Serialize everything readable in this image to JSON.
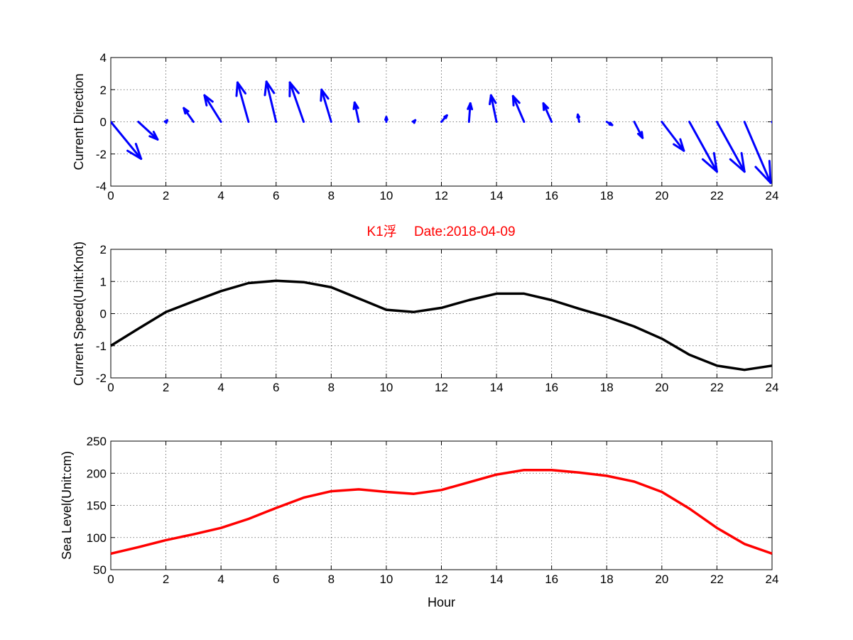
{
  "figure_title": "K1浮　 Date:2018-04-09",
  "chart_data": [
    {
      "type": "quiver",
      "ylabel": "Current Direction",
      "xlabel": "",
      "xlim": [
        0,
        24
      ],
      "ylim": [
        -4,
        4
      ],
      "xticks": [
        0,
        2,
        4,
        6,
        8,
        10,
        12,
        14,
        16,
        18,
        20,
        22,
        24
      ],
      "yticks": [
        4,
        2,
        0,
        -2,
        -4
      ],
      "grid": true,
      "color": "#0000ff",
      "x": [
        0,
        1,
        2,
        3,
        4,
        5,
        6,
        7,
        8,
        9,
        10,
        11,
        12,
        13,
        14,
        15,
        16,
        17,
        18,
        19,
        20,
        21,
        22,
        23,
        24
      ],
      "u": [
        1.1,
        0.7,
        0.05,
        -0.35,
        -0.6,
        -0.4,
        -0.35,
        -0.5,
        -0.35,
        -0.15,
        0.0,
        0.05,
        0.2,
        0.05,
        -0.2,
        -0.4,
        -0.3,
        -0.05,
        0.2,
        0.3,
        0.8,
        1.0,
        1.0,
        0.95,
        0.9
      ],
      "v": [
        -2.3,
        -1.1,
        0.1,
        0.85,
        1.65,
        2.45,
        2.5,
        2.45,
        2.0,
        1.2,
        0.3,
        0.1,
        0.4,
        1.15,
        1.65,
        1.6,
        1.15,
        0.45,
        -0.2,
        -1.0,
        -1.8,
        -3.1,
        -3.1,
        -3.8,
        -3.3
      ]
    },
    {
      "type": "line",
      "ylabel": "Current Speed(Unit:Knot)",
      "xlabel": "",
      "xlim": [
        0,
        24
      ],
      "ylim": [
        -2,
        2
      ],
      "xticks": [
        0,
        2,
        4,
        6,
        8,
        10,
        12,
        14,
        16,
        18,
        20,
        22,
        24
      ],
      "yticks": [
        2,
        1,
        0,
        -1,
        -2
      ],
      "grid": true,
      "color": "#000000",
      "x": [
        0,
        1,
        2,
        3,
        4,
        5,
        6,
        7,
        8,
        9,
        10,
        11,
        12,
        13,
        14,
        15,
        16,
        17,
        18,
        19,
        20,
        21,
        22,
        23,
        24
      ],
      "y": [
        -1.0,
        -0.47,
        0.05,
        0.38,
        0.7,
        0.95,
        1.02,
        0.98,
        0.82,
        0.47,
        0.12,
        0.05,
        0.18,
        0.42,
        0.62,
        0.62,
        0.42,
        0.15,
        -0.1,
        -0.4,
        -0.78,
        -1.28,
        -1.62,
        -1.75,
        -1.62
      ]
    },
    {
      "type": "line",
      "ylabel": "Sea Level(Unit:cm)",
      "xlabel": "Hour",
      "xlim": [
        0,
        24
      ],
      "ylim": [
        50,
        250
      ],
      "xticks": [
        0,
        2,
        4,
        6,
        8,
        10,
        12,
        14,
        16,
        18,
        20,
        22,
        24
      ],
      "yticks": [
        250,
        200,
        150,
        100,
        50
      ],
      "grid": true,
      "color": "#ff0000",
      "x": [
        0,
        1,
        2,
        3,
        4,
        5,
        6,
        7,
        8,
        9,
        10,
        11,
        12,
        13,
        14,
        15,
        16,
        17,
        18,
        19,
        20,
        21,
        22,
        23,
        24
      ],
      "y": [
        75,
        85,
        96,
        105,
        115,
        129,
        146,
        162,
        172,
        175,
        171,
        168,
        174,
        186,
        198,
        205,
        205,
        201,
        196,
        187,
        171,
        145,
        115,
        90,
        75
      ]
    }
  ]
}
